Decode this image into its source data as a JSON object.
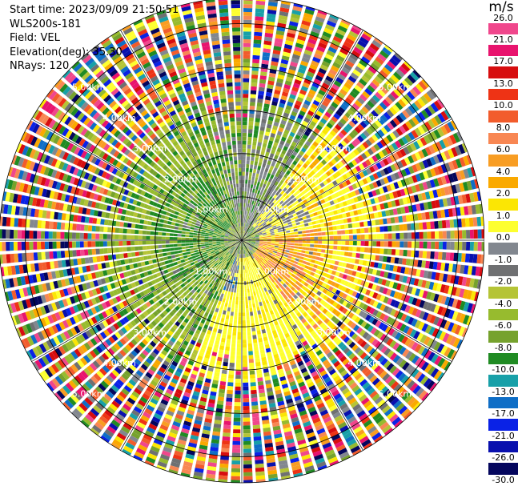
{
  "header": {
    "start_time": "Start time: 2023/09/09 21:50:51",
    "site": "WLS200s-181",
    "field": "Field: VEL",
    "elevation": "Elevation(deg): 35.30",
    "nrays": "NRays: 120"
  },
  "colorbar": {
    "unit": "m/s",
    "ticks": [
      "26.0",
      "21.0",
      "17.0",
      "13.0",
      "10.0",
      "8.0",
      "6.0",
      "4.0",
      "2.0",
      "1.0",
      "0.0",
      "-1.0",
      "-2.0",
      "-4.0",
      "-6.0",
      "-8.0",
      "-10.0",
      "-13.0",
      "-17.0",
      "-21.0",
      "-26.0",
      "-30.0"
    ],
    "colors": [
      "#f0478c",
      "#e8146e",
      "#d70d0f",
      "#ee3315",
      "#f25c2c",
      "#f88753",
      "#f89d23",
      "#faa900",
      "#fbe604",
      "#fdff30",
      "#82878f",
      "#6f7072",
      "#b5c436",
      "#97bb2e",
      "#76a22d",
      "#208b23",
      "#18a0a8",
      "#0f6ec6",
      "#0a22e6",
      "#0910ae",
      "#04065d"
    ]
  },
  "chart_data": {
    "type": "polar-ppi",
    "field": "VEL",
    "units": "m/s",
    "elevation_deg": 35.3,
    "nrays": 120,
    "range_rings_km": [
      1.0,
      2.0,
      3.0,
      4.0,
      5.0
    ],
    "range_ring_labels": [
      "1.00km",
      "2.00km",
      "3.00km",
      "4.00km",
      "5.00km"
    ],
    "max_range_km": 5.6,
    "spokes_deg": [
      0,
      30,
      60,
      90,
      120,
      150,
      180,
      210,
      240,
      270,
      300,
      330
    ],
    "velocity_regions": [
      {
        "sector": "north-west",
        "range_km": [
          0.4,
          2.6
        ],
        "velocity": "-2.0 to -6.0"
      },
      {
        "sector": "south",
        "range_km": [
          0.4,
          3.2
        ],
        "velocity": "1.0 to 2.0"
      },
      {
        "sector": "east",
        "range_km": [
          0.4,
          1.8
        ],
        "velocity": "4.0 to 8.0"
      },
      {
        "sector": "all",
        "range_km": [
          3.0,
          5.6
        ],
        "velocity": "noisy, -30.0 to 26.0"
      }
    ]
  }
}
